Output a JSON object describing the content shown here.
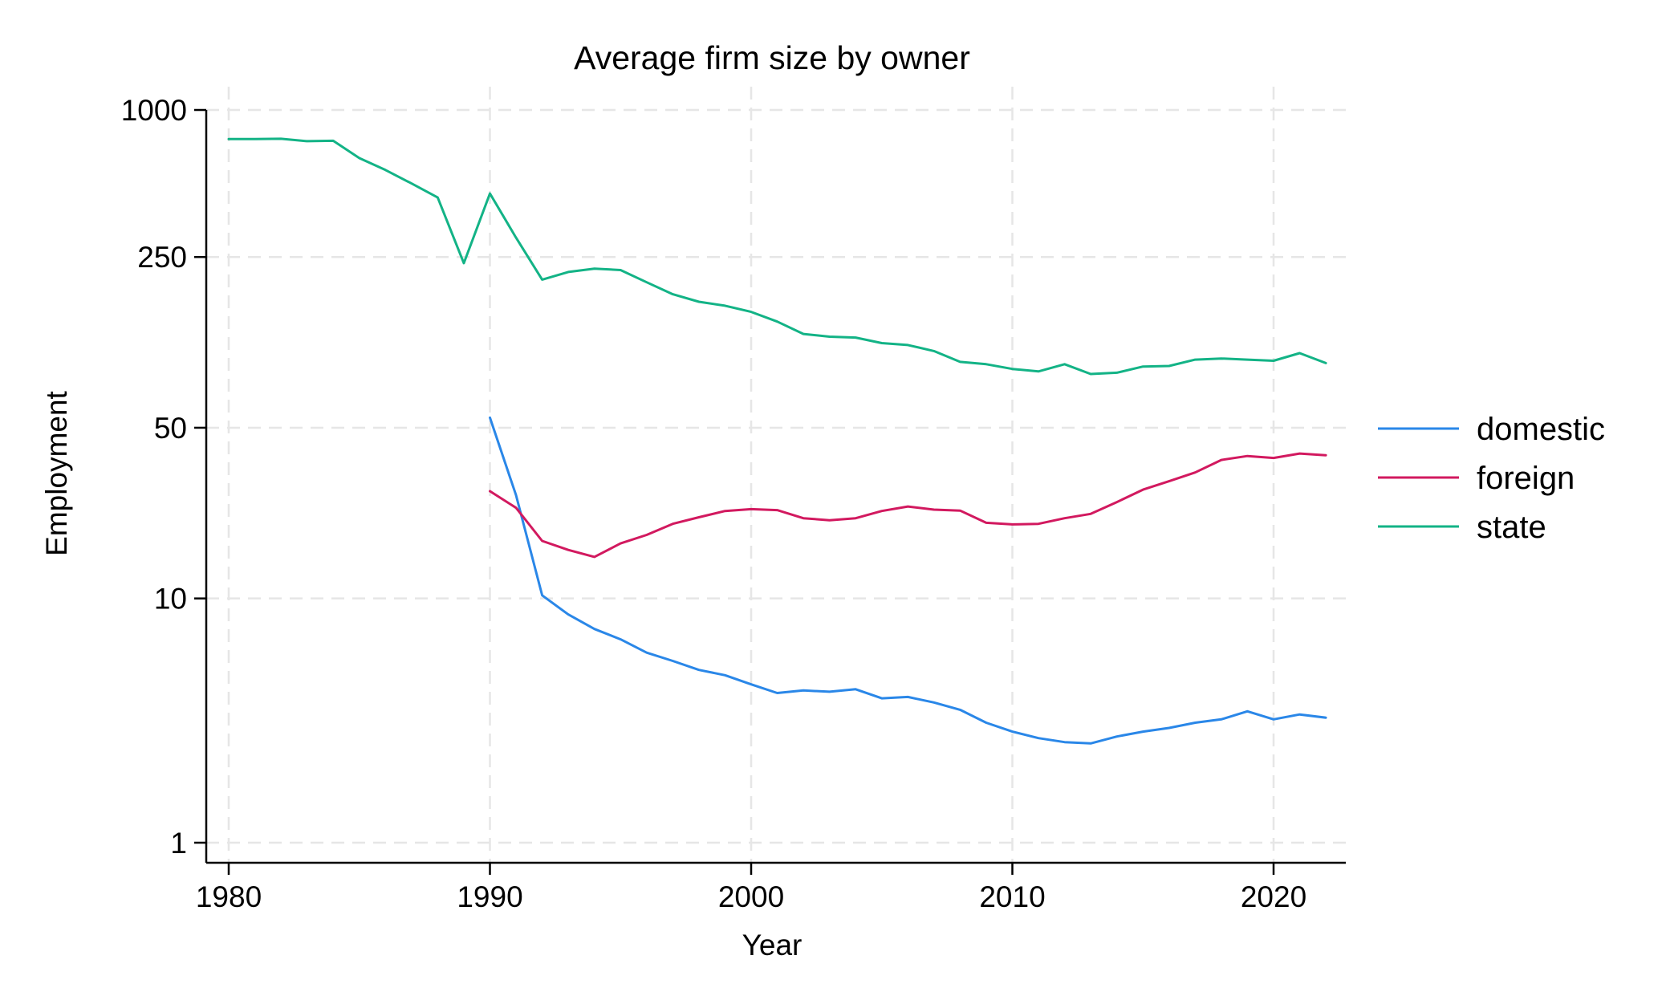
{
  "chart_data": {
    "type": "line",
    "title": "Average firm size by owner",
    "xlabel": "Year",
    "ylabel": "Employment",
    "xlim": [
      1980,
      2022.8
    ],
    "ylim": [
      1,
      1000
    ],
    "y_scale": "log",
    "x_ticks": [
      1980,
      1990,
      2000,
      2010,
      2020
    ],
    "y_ticks": [
      1,
      10,
      50,
      250,
      1000
    ],
    "grid": true,
    "legend_position": "right",
    "series": [
      {
        "name": "domestic",
        "color": "#2a87e8",
        "x": [
          1990,
          1991,
          1992,
          1993,
          1994,
          1995,
          1996,
          1997,
          1998,
          1999,
          2000,
          2001,
          2002,
          2003,
          2004,
          2005,
          2006,
          2007,
          2008,
          2009,
          2010,
          2011,
          2012,
          2013,
          2014,
          2015,
          2016,
          2017,
          2018,
          2019,
          2020,
          2021,
          2022
        ],
        "y": [
          55,
          26.5,
          10.3,
          8.6,
          7.5,
          6.8,
          6.0,
          5.55,
          5.1,
          4.85,
          4.45,
          4.1,
          4.2,
          4.15,
          4.25,
          3.9,
          3.95,
          3.75,
          3.5,
          3.1,
          2.85,
          2.68,
          2.58,
          2.55,
          2.72,
          2.85,
          2.95,
          3.1,
          3.2,
          3.45,
          3.2,
          3.35,
          3.25
        ]
      },
      {
        "name": "foreign",
        "color": "#d2195f",
        "x": [
          1990,
          1991,
          1992,
          1993,
          1994,
          1995,
          1996,
          1997,
          1998,
          1999,
          2000,
          2001,
          2002,
          2003,
          2004,
          2005,
          2006,
          2007,
          2008,
          2009,
          2010,
          2011,
          2012,
          2013,
          2014,
          2015,
          2016,
          2017,
          2018,
          2019,
          2020,
          2021,
          2022
        ],
        "y": [
          27.5,
          23.5,
          17.2,
          15.8,
          14.8,
          16.8,
          18.2,
          20.2,
          21.5,
          22.8,
          23.2,
          23.0,
          21.3,
          20.9,
          21.3,
          22.8,
          23.8,
          23.1,
          22.9,
          20.4,
          20.1,
          20.2,
          21.3,
          22.2,
          24.8,
          27.9,
          30.2,
          32.8,
          36.9,
          38.3,
          37.6,
          39.2,
          38.6
        ]
      },
      {
        "name": "state",
        "color": "#13b386",
        "x": [
          1980,
          1981,
          1982,
          1983,
          1984,
          1985,
          1986,
          1987,
          1988,
          1989,
          1990,
          1991,
          1992,
          1993,
          1994,
          1995,
          1996,
          1997,
          1998,
          1999,
          2000,
          2001,
          2002,
          2003,
          2004,
          2005,
          2006,
          2007,
          2008,
          2009,
          2010,
          2011,
          2012,
          2013,
          2014,
          2015,
          2016,
          2017,
          2018,
          2019,
          2020,
          2021,
          2022
        ],
        "y": [
          760,
          760,
          762,
          745,
          748,
          635,
          568,
          500,
          438,
          236,
          455,
          300,
          202,
          217,
          224,
          221,
          197,
          176,
          164,
          158,
          149,
          136,
          121,
          118,
          117,
          111,
          109,
          103,
          93,
          91,
          87,
          85,
          91,
          83,
          84,
          89,
          89.5,
          95,
          96,
          95,
          94,
          101,
          92
        ]
      }
    ]
  }
}
